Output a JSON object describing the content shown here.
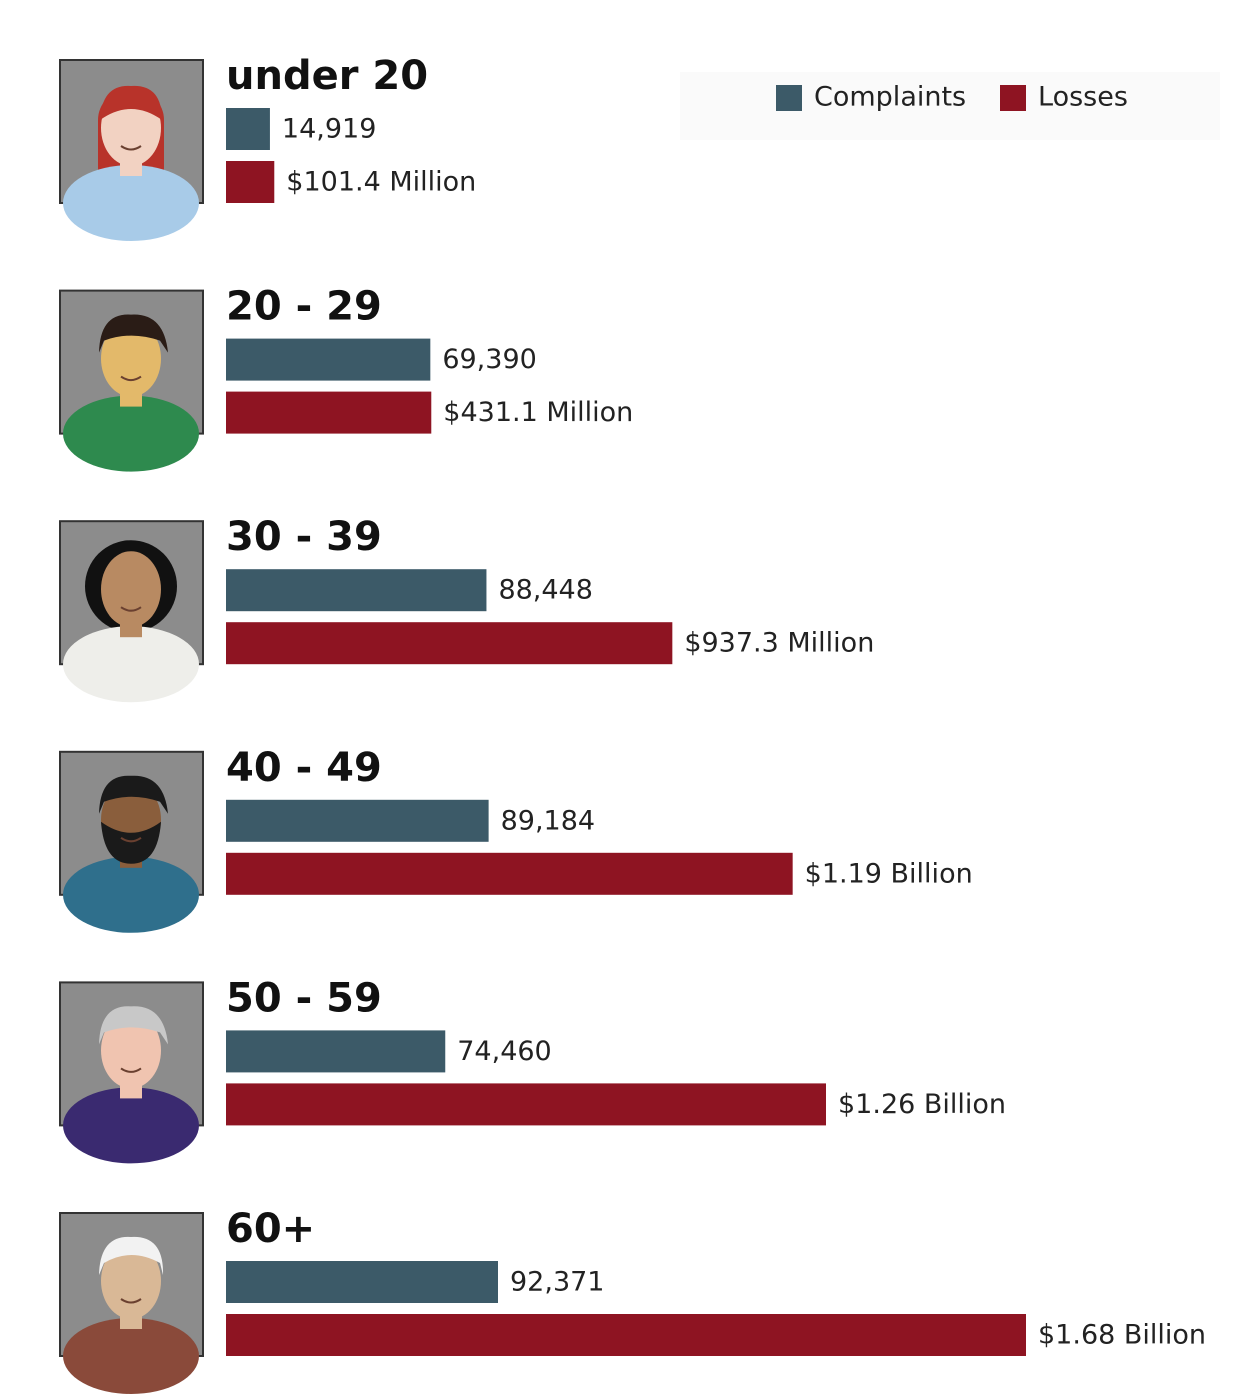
{
  "chart_data": {
    "type": "bar",
    "orientation": "horizontal",
    "categories": [
      "under 20",
      "20 - 29",
      "30 - 39",
      "40 - 49",
      "50 - 59",
      "60+"
    ],
    "series": [
      {
        "name": "Complaints",
        "color": "#3c5a68",
        "values": [
          14919,
          69390,
          88448,
          89184,
          74460,
          92371
        ],
        "value_labels": [
          "14,919",
          "69,390",
          "88,448",
          "89,184",
          "74,460",
          "92,371"
        ]
      },
      {
        "name": "Losses",
        "color": "#8e1422",
        "values": [
          101400000,
          431100000,
          937300000,
          1190000000,
          1260000000,
          1680000000
        ],
        "value_labels": [
          "$101.4 Million",
          "$431.1 Million",
          "$937.3 Million",
          "$1.19 Billion",
          "$1.26 Billion",
          "$1.68 Billion"
        ]
      }
    ],
    "legend": "top-right"
  }
}
